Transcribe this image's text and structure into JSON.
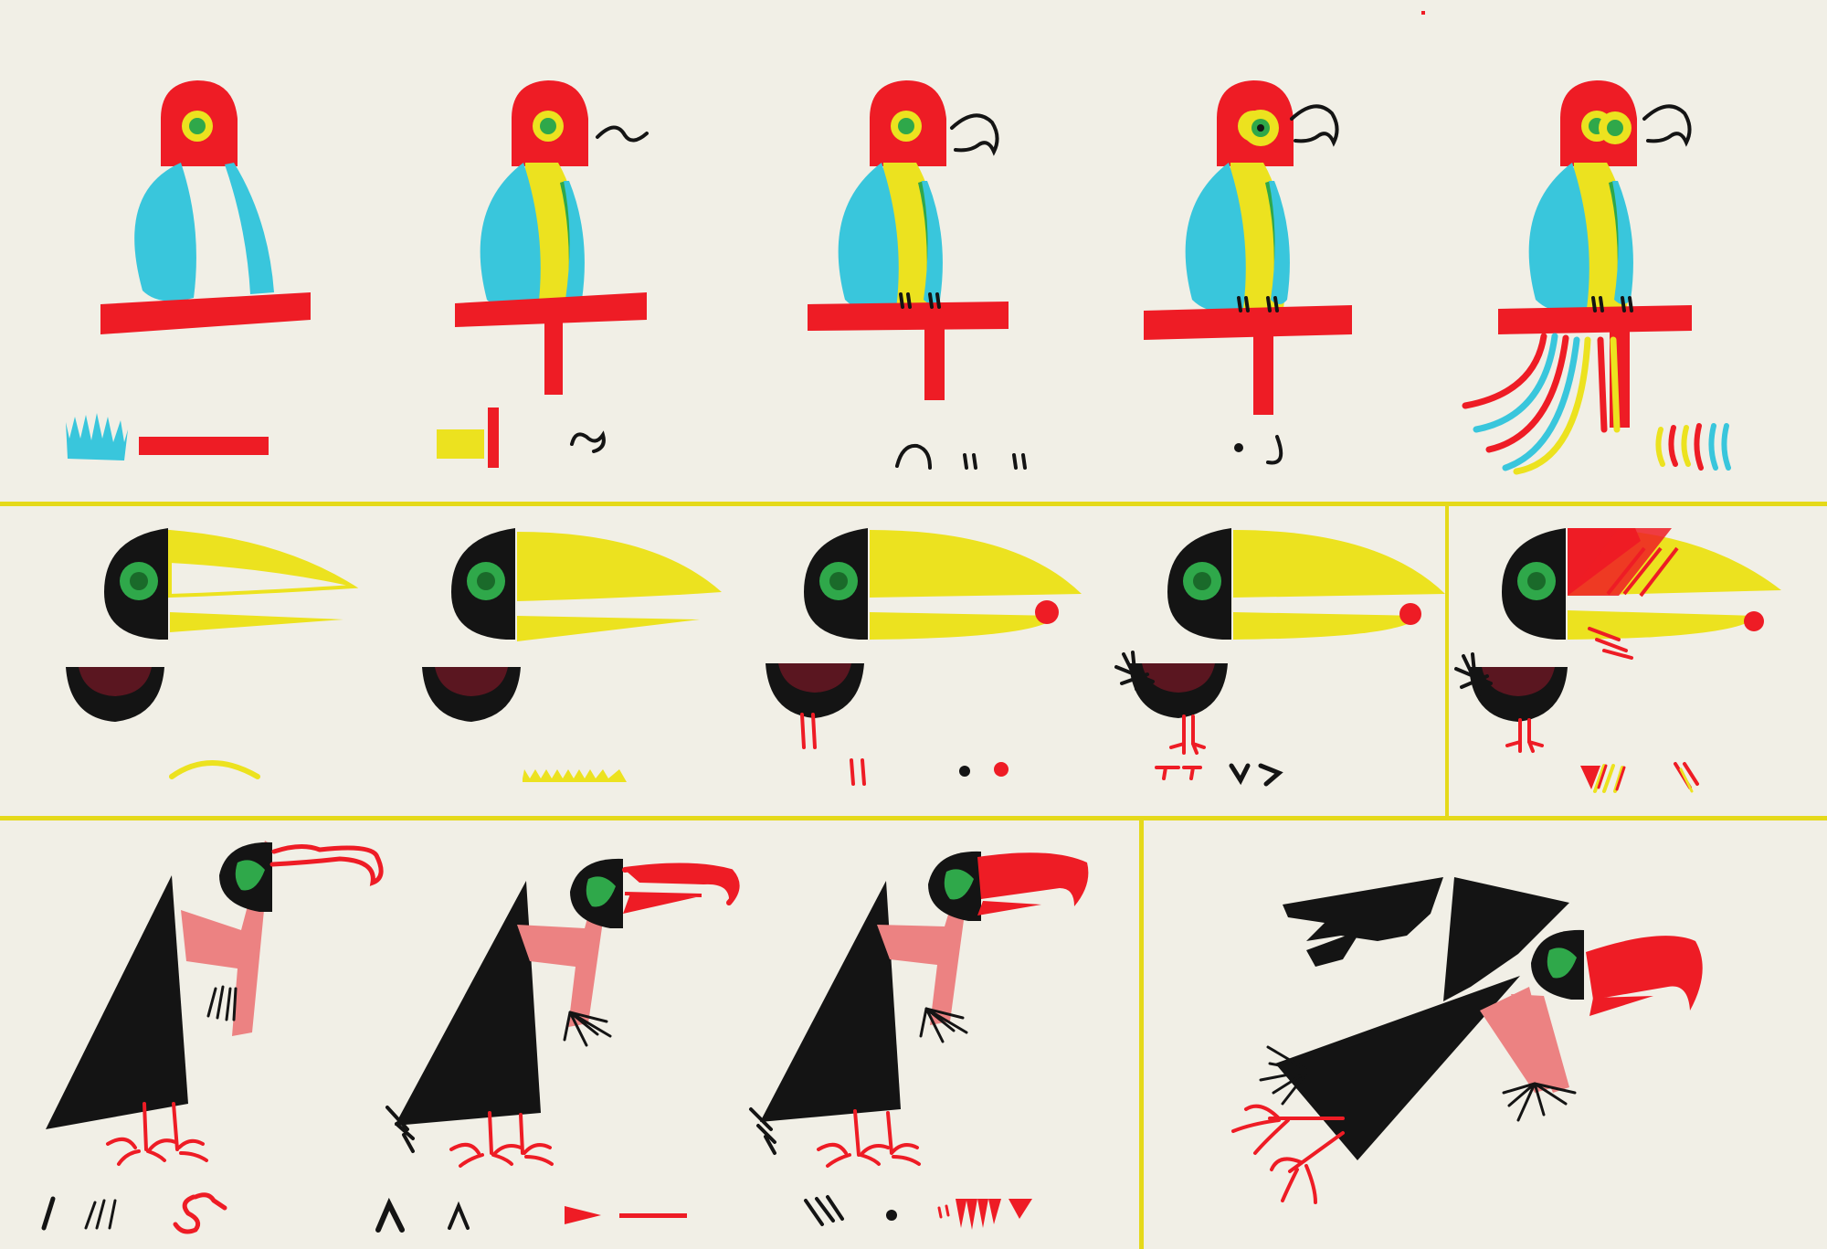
{
  "title": "",
  "colors": {
    "paper": "#f1efe6",
    "red": "#ee1c25",
    "yellow": "#ece21f",
    "cyan": "#39c6dc",
    "green": "#2fa84a",
    "black": "#141414",
    "maroon": "#5a1620",
    "pink": "#ec8282",
    "divider": "#e5d91a"
  },
  "rows": [
    {
      "name": "parrot-row",
      "steps": 5,
      "final_step_separated": false
    },
    {
      "name": "toucan-row",
      "steps": 5,
      "final_step_separated": true
    },
    {
      "name": "vulture-row",
      "steps": 4,
      "final_step_separated": true
    }
  ]
}
